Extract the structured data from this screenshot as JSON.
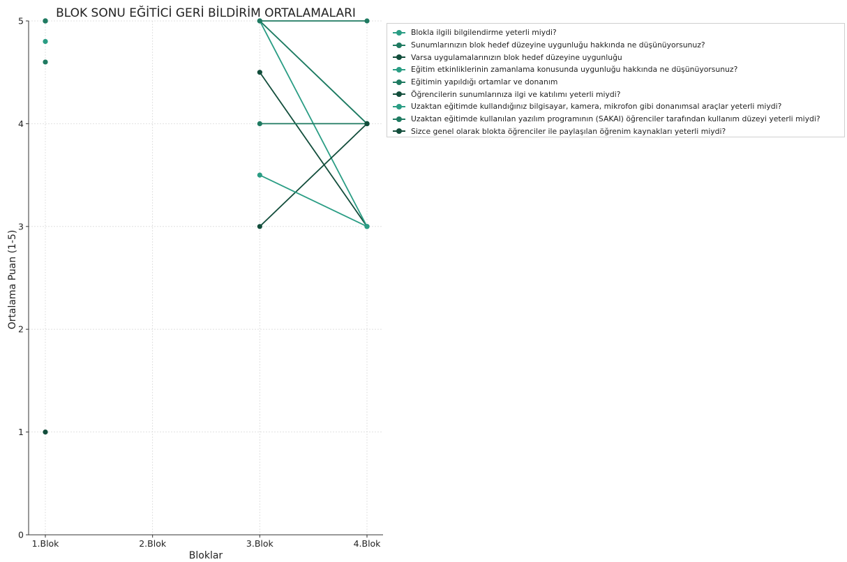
{
  "chart_data": {
    "type": "line",
    "title": "BLOK SONU EĞİTİCİ GERİ BİLDİRİM ORTALAMALARI",
    "xlabel": "Bloklar",
    "ylabel": "Ortalama Puan (1-5)",
    "categories": [
      "1.Blok",
      "2.Blok",
      "3.Blok",
      "4.Blok"
    ],
    "ylim": [
      0,
      5
    ],
    "yticks": [
      "0",
      "1",
      "2",
      "3",
      "4",
      "5"
    ],
    "grid": true,
    "legend_position": "outside-top-right",
    "series": [
      {
        "name": "Blokla ilgili bilgilendirme yeterli miydi?",
        "color": "#2a9d84",
        "values": [
          5,
          null,
          5,
          4
        ]
      },
      {
        "name": "Sunumlarınızın blok hedef düzeyine uygunluğu hakkında ne düşünüyorsunuz?",
        "color": "#1f7a61",
        "values": [
          5,
          null,
          5,
          4
        ]
      },
      {
        "name": "Varsa uygulamalarınızın blok hedef düzeyine uygunluğu",
        "color": "#124d3b",
        "values": [
          5,
          null,
          4.5,
          3
        ]
      },
      {
        "name": "Eğitim etkinliklerinin zamanlama konusunda uygunluğu hakkında ne düşünüyorsunuz?",
        "color": "#2a9d84",
        "values": [
          4.8,
          null,
          5,
          3
        ]
      },
      {
        "name": "Eğitimin yapıldığı ortamlar ve donanım",
        "color": "#1f7a61",
        "values": [
          4.6,
          null,
          4,
          4
        ]
      },
      {
        "name": "Öğrencilerin sunumlarınıza ilgi ve katılımı yeterli miydi?",
        "color": "#124d3b",
        "values": [
          5,
          null,
          3,
          4
        ]
      },
      {
        "name": "Uzaktan eğitimde kullandığınız bilgisayar, kamera, mikrofon gibi donanımsal araçlar yeterli miydi?",
        "color": "#2a9d84",
        "values": [
          5,
          null,
          3.5,
          3
        ]
      },
      {
        "name": "Uzaktan eğitimde kullanılan yazılım programının (SAKAI) öğrenciler tarafından kullanım düzeyi yeterli miydi?",
        "color": "#1f7a61",
        "values": [
          5,
          null,
          5,
          5
        ]
      },
      {
        "name": "Sizce genel olarak blokta öğrenciler ile paylaşılan öğrenim kaynakları yeterli miydi?",
        "color": "#124d3b",
        "values": [
          1,
          null,
          null,
          null
        ]
      }
    ]
  }
}
